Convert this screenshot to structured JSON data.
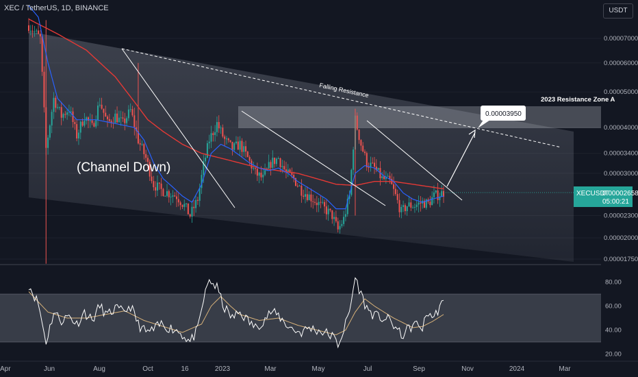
{
  "header": {
    "symbol_title": "XEC / TetherUS, 1D, BINANCE",
    "currency_button": "USDT"
  },
  "price_badge": {
    "ticker": "XECUSDT",
    "price": "0.00002658",
    "countdown": "05:00:21"
  },
  "annotations": {
    "channel_label": "(Channel Down)",
    "falling_resistance": "Falling Resistance",
    "resistance_zone": "2023 Resistance Zone A",
    "target_price": "0.00003950"
  },
  "colors": {
    "background": "#131722",
    "candle_up": "#26a69a",
    "candle_down": "#ef5350",
    "ma_red": "#e53935",
    "ma_blue": "#2962ff",
    "rsi_line": "#ffffff",
    "rsi_ma": "#d8b27a"
  },
  "chart_data": [
    {
      "type": "candlestick",
      "title": "XEC / TetherUS, 1D, BINANCE",
      "y_scale": "log",
      "y_ticks": [
        "0.00007000",
        "0.00006000",
        "0.00005000",
        "0.00004000",
        "0.00003400",
        "0.00003000",
        "0.00002300",
        "0.00002000",
        "0.00001750"
      ],
      "x_ticks": [
        "Apr",
        "Jun",
        "Aug",
        "Oct",
        "16",
        "2023",
        "Mar",
        "May",
        "Jul",
        "Sep",
        "Nov",
        "2024",
        "Mar"
      ],
      "last_price": 2.658e-05,
      "target_price": 3.95e-05,
      "close_path": [
        [
          0,
          7.6e-05
        ],
        [
          6,
          7e-05
        ],
        [
          9,
          3.5e-05
        ],
        [
          13,
          4.8e-05
        ],
        [
          17,
          4.3e-05
        ],
        [
          21,
          4.5e-05
        ],
        [
          25,
          3.8e-05
        ],
        [
          29,
          4.3e-05
        ],
        [
          33,
          4e-05
        ],
        [
          37,
          4.7e-05
        ],
        [
          41,
          4.1e-05
        ],
        [
          45,
          4.3e-05
        ],
        [
          49,
          4.1e-05
        ],
        [
          53,
          4.45e-05
        ],
        [
          57,
          3.7e-05
        ],
        [
          61,
          3.3e-05
        ],
        [
          65,
          2.8e-05
        ],
        [
          69,
          2.7e-05
        ],
        [
          73,
          2.65e-05
        ],
        [
          77,
          2.6e-05
        ],
        [
          81,
          2.45e-05
        ],
        [
          84,
          2.3e-05
        ],
        [
          88,
          2.55e-05
        ],
        [
          91,
          3.15e-05
        ],
        [
          94,
          3.7e-05
        ],
        [
          98,
          4.1e-05
        ],
        [
          102,
          3.7e-05
        ],
        [
          106,
          3.5e-05
        ],
        [
          110,
          3.6e-05
        ],
        [
          114,
          3.3e-05
        ],
        [
          118,
          3e-05
        ],
        [
          122,
          2.9e-05
        ],
        [
          126,
          3.2e-05
        ],
        [
          130,
          3.3e-05
        ],
        [
          134,
          3e-05
        ],
        [
          138,
          2.9e-05
        ],
        [
          142,
          2.7e-05
        ],
        [
          146,
          2.6e-05
        ],
        [
          150,
          2.5e-05
        ],
        [
          154,
          2.4e-05
        ],
        [
          158,
          2.3e-05
        ],
        [
          161,
          2.1e-05
        ],
        [
          164,
          2.25e-05
        ],
        [
          167,
          2.6e-05
        ],
        [
          170,
          4.2e-05
        ],
        [
          173,
          3.6e-05
        ],
        [
          176,
          3.2e-05
        ],
        [
          180,
          3.1e-05
        ],
        [
          184,
          2.9e-05
        ],
        [
          188,
          2.85e-05
        ],
        [
          191,
          2.6e-05
        ],
        [
          194,
          2.35e-05
        ],
        [
          197,
          2.45e-05
        ],
        [
          201,
          2.45e-05
        ],
        [
          205,
          2.5e-05
        ],
        [
          208,
          2.48e-05
        ],
        [
          211,
          2.6e-05
        ],
        [
          214,
          2.63e-05
        ],
        [
          216,
          2.66e-05
        ]
      ],
      "ma_red_path": [
        [
          0,
          7.9e-05
        ],
        [
          15,
          7.2e-05
        ],
        [
          30,
          6.5e-05
        ],
        [
          45,
          5.5e-05
        ],
        [
          55,
          4.7e-05
        ],
        [
          62,
          4.2e-05
        ],
        [
          70,
          3.9e-05
        ],
        [
          80,
          3.6e-05
        ],
        [
          90,
          3.4e-05
        ],
        [
          100,
          3.3e-05
        ],
        [
          110,
          3.2e-05
        ],
        [
          120,
          3.1e-05
        ],
        [
          130,
          3.05e-05
        ],
        [
          140,
          3e-05
        ],
        [
          150,
          2.9e-05
        ],
        [
          160,
          2.8e-05
        ],
        [
          170,
          2.78e-05
        ],
        [
          180,
          2.85e-05
        ],
        [
          190,
          2.85e-05
        ],
        [
          200,
          2.8e-05
        ],
        [
          210,
          2.75e-05
        ],
        [
          216,
          2.72e-05
        ]
      ],
      "ma_blue_path": [
        [
          0,
          8.6e-05
        ],
        [
          5,
          8e-05
        ],
        [
          10,
          6e-05
        ],
        [
          15,
          4.8e-05
        ],
        [
          25,
          4.2e-05
        ],
        [
          35,
          4.2e-05
        ],
        [
          45,
          4.1e-05
        ],
        [
          55,
          4e-05
        ],
        [
          60,
          3.7e-05
        ],
        [
          65,
          3.2e-05
        ],
        [
          70,
          2.9e-05
        ],
        [
          75,
          2.75e-05
        ],
        [
          80,
          2.6e-05
        ],
        [
          85,
          2.5e-05
        ],
        [
          90,
          2.8e-05
        ],
        [
          95,
          3.4e-05
        ],
        [
          100,
          3.6e-05
        ],
        [
          105,
          3.5e-05
        ],
        [
          110,
          3.35e-05
        ],
        [
          115,
          3.2e-05
        ],
        [
          120,
          3.1e-05
        ],
        [
          125,
          3.05e-05
        ],
        [
          130,
          3.1e-05
        ],
        [
          135,
          3e-05
        ],
        [
          140,
          2.85e-05
        ],
        [
          145,
          2.75e-05
        ],
        [
          150,
          2.65e-05
        ],
        [
          155,
          2.55e-05
        ],
        [
          160,
          2.4e-05
        ],
        [
          165,
          2.4e-05
        ],
        [
          170,
          3e-05
        ],
        [
          175,
          3.15e-05
        ],
        [
          180,
          3.1e-05
        ],
        [
          185,
          2.95e-05
        ],
        [
          190,
          2.85e-05
        ],
        [
          195,
          2.65e-05
        ],
        [
          200,
          2.55e-05
        ],
        [
          205,
          2.5e-05
        ],
        [
          210,
          2.55e-05
        ],
        [
          216,
          2.6e-05
        ]
      ]
    },
    {
      "type": "line",
      "title": "",
      "ylim": [
        20,
        90
      ],
      "y_ticks": [
        80,
        60,
        40,
        20
      ],
      "band": [
        30,
        70
      ],
      "rsi_path": [
        [
          0,
          78
        ],
        [
          5,
          62
        ],
        [
          9,
          30
        ],
        [
          13,
          55
        ],
        [
          17,
          48
        ],
        [
          21,
          52
        ],
        [
          25,
          45
        ],
        [
          29,
          55
        ],
        [
          33,
          48
        ],
        [
          37,
          60
        ],
        [
          41,
          52
        ],
        [
          45,
          58
        ],
        [
          49,
          55
        ],
        [
          53,
          60
        ],
        [
          57,
          45
        ],
        [
          61,
          38
        ],
        [
          65,
          40
        ],
        [
          69,
          45
        ],
        [
          73,
          42
        ],
        [
          77,
          40
        ],
        [
          81,
          35
        ],
        [
          84,
          30
        ],
        [
          88,
          40
        ],
        [
          91,
          65
        ],
        [
          94,
          82
        ],
        [
          98,
          75
        ],
        [
          102,
          58
        ],
        [
          106,
          50
        ],
        [
          110,
          55
        ],
        [
          114,
          48
        ],
        [
          118,
          42
        ],
        [
          122,
          48
        ],
        [
          126,
          55
        ],
        [
          130,
          52
        ],
        [
          134,
          45
        ],
        [
          138,
          40
        ],
        [
          142,
          38
        ],
        [
          146,
          42
        ],
        [
          150,
          40
        ],
        [
          154,
          38
        ],
        [
          158,
          35
        ],
        [
          161,
          28
        ],
        [
          164,
          40
        ],
        [
          167,
          55
        ],
        [
          170,
          84
        ],
        [
          173,
          70
        ],
        [
          176,
          58
        ],
        [
          180,
          52
        ],
        [
          184,
          50
        ],
        [
          188,
          48
        ],
        [
          191,
          42
        ],
        [
          194,
          35
        ],
        [
          197,
          40
        ],
        [
          201,
          45
        ],
        [
          205,
          42
        ],
        [
          208,
          55
        ],
        [
          211,
          50
        ],
        [
          214,
          60
        ],
        [
          216,
          62
        ]
      ],
      "rsi_ma_path": [
        [
          0,
          72
        ],
        [
          10,
          55
        ],
        [
          20,
          50
        ],
        [
          30,
          50
        ],
        [
          40,
          53
        ],
        [
          50,
          56
        ],
        [
          60,
          48
        ],
        [
          70,
          43
        ],
        [
          80,
          38
        ],
        [
          90,
          45
        ],
        [
          95,
          60
        ],
        [
          100,
          68
        ],
        [
          105,
          60
        ],
        [
          110,
          53
        ],
        [
          120,
          48
        ],
        [
          130,
          50
        ],
        [
          140,
          44
        ],
        [
          150,
          40
        ],
        [
          160,
          36
        ],
        [
          165,
          40
        ],
        [
          170,
          55
        ],
        [
          175,
          66
        ],
        [
          180,
          60
        ],
        [
          190,
          50
        ],
        [
          200,
          42
        ],
        [
          205,
          43
        ],
        [
          210,
          47
        ],
        [
          216,
          53
        ]
      ]
    }
  ]
}
